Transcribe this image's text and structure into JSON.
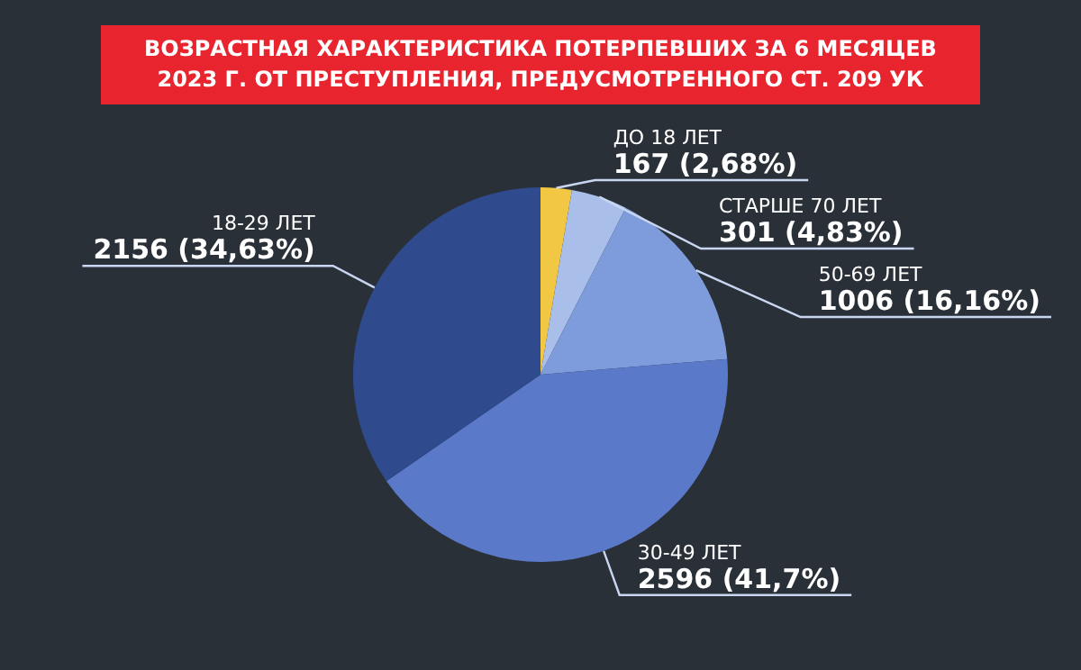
{
  "chart_data": {
    "type": "pie",
    "title": "ВОЗРАСТНАЯ ХАРАКТЕРИСТИКА ПОТЕРПЕВШИХ ЗА 6 МЕСЯЦЕВ 2023 Г. ОТ ПРЕСТУПЛЕНИЯ, ПРЕДУСМОТРЕННОГО СТ. 209 УК",
    "categories": [
      "ДО 18 ЛЕТ",
      "СТАРШЕ 70 ЛЕТ",
      "50-69 ЛЕТ",
      "30-49 ЛЕТ",
      "18-29 ЛЕТ"
    ],
    "values": [
      167,
      301,
      1006,
      2596,
      2156
    ],
    "value_labels": [
      "167 (2,68%)",
      "301 (4,83%)",
      "1006 (16,16%)",
      "2596 (41,7%)",
      "2156 (34,63%)"
    ],
    "colors": [
      "#f2c744",
      "#a9bfe9",
      "#7e9bdb",
      "#5b79c9",
      "#2f4b8e"
    ],
    "legend": false
  }
}
